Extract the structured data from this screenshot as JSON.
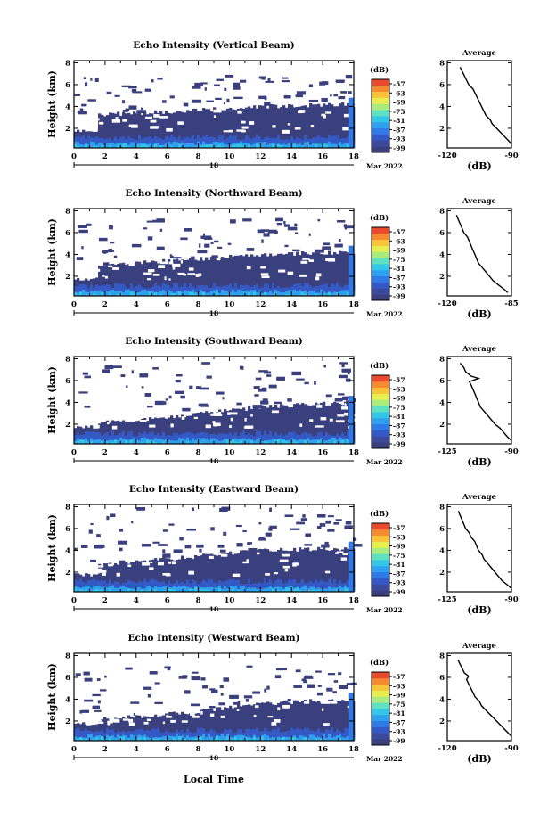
{
  "figure": {
    "xlabel": "Local Time",
    "date_day": "18",
    "date_label": "Mar 2022"
  },
  "colorbar": {
    "unit": "(dB)",
    "ticks": [
      "-57",
      "-63",
      "-69",
      "-75",
      "-81",
      "-87",
      "-93",
      "-99"
    ],
    "colors": [
      "#3a3f7e",
      "#3b4a9a",
      "#3559c4",
      "#2f7ae6",
      "#2fa0ee",
      "#33c6e6",
      "#5fe0c0",
      "#a9ec7d",
      "#e8ee52",
      "#f8c43a",
      "#f48a32",
      "#e84a2e"
    ]
  },
  "chart_data": [
    {
      "type": "heatmap",
      "title": "Echo Intensity (Vertical Beam)",
      "ylabel": "Height (km)",
      "xlim": [
        0,
        18
      ],
      "ylim": [
        0.2,
        8.2
      ],
      "x_ticks": [
        "0",
        "2",
        "4",
        "6",
        "8",
        "10",
        "12",
        "14",
        "16",
        "18"
      ],
      "y_ticks": [
        "2",
        "4",
        "6",
        "8"
      ],
      "profile": {
        "title": "Average",
        "xlabel": "(dB)",
        "xlim": [
          -120,
          -90
        ],
        "x_ticks": [
          "-120",
          "-90"
        ],
        "y_ticks": [
          "2",
          "4",
          "6",
          "8"
        ],
        "points": [
          [
            -114,
            7.6
          ],
          [
            -113,
            7.2
          ],
          [
            -112,
            6.8
          ],
          [
            -111,
            6.4
          ],
          [
            -110,
            6.0
          ],
          [
            -108,
            5.6
          ],
          [
            -107,
            5.2
          ],
          [
            -106,
            4.8
          ],
          [
            -105,
            4.4
          ],
          [
            -104,
            4.0
          ],
          [
            -103,
            3.6
          ],
          [
            -102,
            3.2
          ],
          [
            -100,
            2.8
          ],
          [
            -99,
            2.4
          ],
          [
            -97,
            2.0
          ],
          [
            -95,
            1.6
          ],
          [
            -93,
            1.2
          ],
          [
            -91,
            0.8
          ],
          [
            -90,
            0.5
          ]
        ]
      },
      "top_band_km": [
        3.2,
        3.5,
        4.0,
        4.2
      ],
      "sparse_top_km": 6.8
    },
    {
      "type": "heatmap",
      "title": "Echo Intensity (Northward Beam)",
      "ylabel": "Height (km)",
      "xlim": [
        0,
        18
      ],
      "ylim": [
        0.2,
        8.2
      ],
      "x_ticks": [
        "0",
        "2",
        "4",
        "6",
        "8",
        "10",
        "12",
        "14",
        "16",
        "18"
      ],
      "y_ticks": [
        "2",
        "4",
        "6",
        "8"
      ],
      "profile": {
        "title": "Average",
        "xlabel": "(dB)",
        "xlim": [
          -120,
          -85
        ],
        "x_ticks": [
          "-120",
          "-85"
        ],
        "y_ticks": [
          "2",
          "4",
          "6",
          "8"
        ],
        "points": [
          [
            -115,
            7.6
          ],
          [
            -114,
            7.2
          ],
          [
            -113,
            6.8
          ],
          [
            -112,
            6.4
          ],
          [
            -111,
            6.0
          ],
          [
            -109,
            5.6
          ],
          [
            -108,
            5.2
          ],
          [
            -107,
            4.8
          ],
          [
            -106,
            4.4
          ],
          [
            -105,
            4.0
          ],
          [
            -104,
            3.6
          ],
          [
            -103,
            3.2
          ],
          [
            -101,
            2.8
          ],
          [
            -99,
            2.4
          ],
          [
            -97,
            2.0
          ],
          [
            -95,
            1.6
          ],
          [
            -92,
            1.2
          ],
          [
            -89,
            0.8
          ],
          [
            -87,
            0.5
          ]
        ]
      },
      "top_band_km": [
        3.0,
        3.4,
        4.0,
        4.2
      ],
      "sparse_top_km": 7.2
    },
    {
      "type": "heatmap",
      "title": "Echo Intensity (Southward Beam)",
      "ylabel": "Height (km)",
      "xlim": [
        0,
        18
      ],
      "ylim": [
        0.2,
        8.2
      ],
      "x_ticks": [
        "0",
        "2",
        "4",
        "6",
        "8",
        "10",
        "12",
        "14",
        "16",
        "18"
      ],
      "y_ticks": [
        "2",
        "4",
        "6",
        "8"
      ],
      "profile": {
        "title": "Average",
        "xlabel": "(dB)",
        "xlim": [
          -125,
          -90
        ],
        "x_ticks": [
          "-125",
          "-90"
        ],
        "y_ticks": [
          "2",
          "4",
          "6",
          "8"
        ],
        "points": [
          [
            -118,
            7.6
          ],
          [
            -116,
            7.2
          ],
          [
            -115,
            6.8
          ],
          [
            -112,
            6.4
          ],
          [
            -108,
            6.2
          ],
          [
            -113,
            5.9
          ],
          [
            -112,
            5.6
          ],
          [
            -111,
            5.2
          ],
          [
            -110,
            4.8
          ],
          [
            -109,
            4.4
          ],
          [
            -108,
            4.0
          ],
          [
            -107,
            3.6
          ],
          [
            -105,
            3.2
          ],
          [
            -103,
            2.8
          ],
          [
            -101,
            2.4
          ],
          [
            -99,
            2.0
          ],
          [
            -96,
            1.6
          ],
          [
            -94,
            1.2
          ],
          [
            -92,
            0.8
          ],
          [
            -90,
            0.5
          ]
        ]
      },
      "top_band_km": [
        2.0,
        2.6,
        3.6,
        4.0
      ],
      "sparse_top_km": 7.6
    },
    {
      "type": "heatmap",
      "title": "Echo Intensity (Eastward Beam)",
      "ylabel": "Height (km)",
      "xlim": [
        0,
        18
      ],
      "ylim": [
        0.2,
        8.2
      ],
      "x_ticks": [
        "0",
        "2",
        "4",
        "6",
        "8",
        "10",
        "12",
        "14",
        "16",
        "18"
      ],
      "y_ticks": [
        "2",
        "4",
        "6",
        "8"
      ],
      "profile": {
        "title": "Average",
        "xlabel": "(dB)",
        "xlim": [
          -125,
          -90
        ],
        "x_ticks": [
          "-125",
          "-90"
        ],
        "y_ticks": [
          "2",
          "4",
          "6",
          "8"
        ],
        "points": [
          [
            -119,
            7.6
          ],
          [
            -118,
            7.2
          ],
          [
            -117,
            6.8
          ],
          [
            -116,
            6.4
          ],
          [
            -115,
            6.0
          ],
          [
            -113,
            5.6
          ],
          [
            -112,
            5.2
          ],
          [
            -110,
            4.8
          ],
          [
            -109,
            4.4
          ],
          [
            -108,
            4.0
          ],
          [
            -106,
            3.6
          ],
          [
            -105,
            3.2
          ],
          [
            -103,
            2.8
          ],
          [
            -101,
            2.4
          ],
          [
            -99,
            2.0
          ],
          [
            -97,
            1.6
          ],
          [
            -95,
            1.2
          ],
          [
            -92,
            0.8
          ],
          [
            -90,
            0.5
          ]
        ]
      },
      "top_band_km": [
        2.6,
        3.2,
        4.0,
        4.2
      ],
      "sparse_top_km": 7.8
    },
    {
      "type": "heatmap",
      "title": "Echo Intensity (Westward Beam)",
      "ylabel": "Height (km)",
      "xlim": [
        0,
        18
      ],
      "ylim": [
        0.2,
        8.2
      ],
      "x_ticks": [
        "0",
        "2",
        "4",
        "6",
        "8",
        "10",
        "12",
        "14",
        "16",
        "18"
      ],
      "y_ticks": [
        "2",
        "4",
        "6",
        "8"
      ],
      "profile": {
        "title": "Average",
        "xlabel": "(dB)",
        "xlim": [
          -120,
          -90
        ],
        "x_ticks": [
          "-120",
          "-90"
        ],
        "y_ticks": [
          "2",
          "4",
          "6",
          "8"
        ],
        "points": [
          [
            -115,
            7.6
          ],
          [
            -114,
            7.2
          ],
          [
            -113,
            6.8
          ],
          [
            -112,
            6.4
          ],
          [
            -110,
            6.1
          ],
          [
            -111,
            5.8
          ],
          [
            -110,
            5.4
          ],
          [
            -109,
            5.0
          ],
          [
            -108,
            4.6
          ],
          [
            -107,
            4.2
          ],
          [
            -105,
            3.8
          ],
          [
            -104,
            3.4
          ],
          [
            -102,
            3.0
          ],
          [
            -100,
            2.6
          ],
          [
            -98,
            2.2
          ],
          [
            -96,
            1.8
          ],
          [
            -94,
            1.4
          ],
          [
            -92,
            1.0
          ],
          [
            -90,
            0.6
          ]
        ]
      },
      "top_band_km": [
        2.0,
        2.6,
        3.6,
        4.0
      ],
      "sparse_top_km": 7.0
    }
  ]
}
